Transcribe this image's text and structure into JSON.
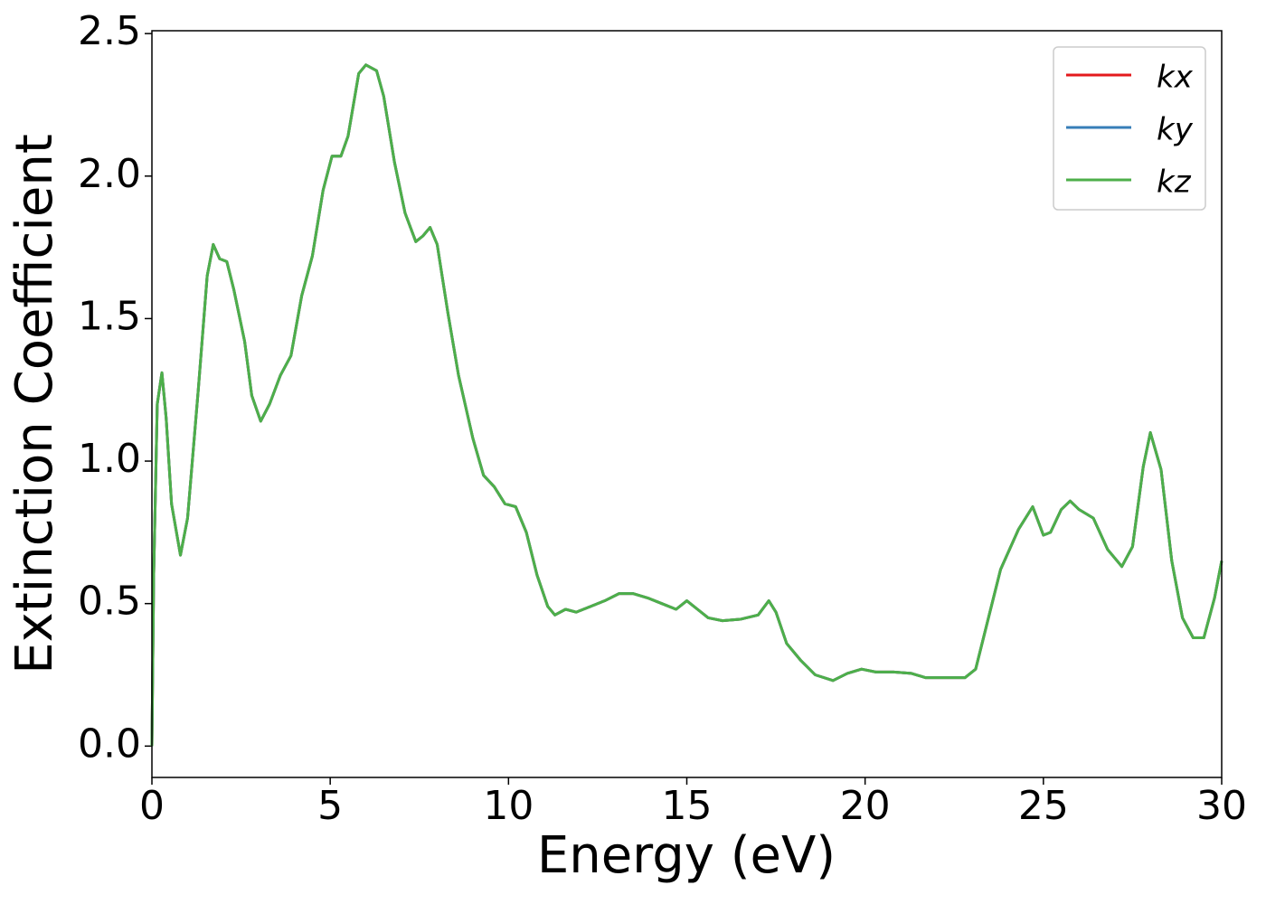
{
  "chart_data": {
    "type": "line",
    "xlabel": "Energy (eV)",
    "ylabel": "Extinction Coefficient",
    "xlim": [
      0,
      30
    ],
    "ylim": [
      -0.11,
      2.51
    ],
    "xticks": [
      0,
      5,
      10,
      15,
      20,
      25,
      30
    ],
    "yticks": [
      {
        "value": 0,
        "label": "0.0"
      },
      0.5,
      {
        "value": 1,
        "label": "1.0"
      },
      1.5,
      {
        "value": 2,
        "label": "2.0"
      },
      2.5
    ],
    "legend": "upper right",
    "x": [
      0,
      0.05,
      0.15,
      0.28,
      0.4,
      0.55,
      0.8,
      1.0,
      1.3,
      1.55,
      1.72,
      1.9,
      2.1,
      2.3,
      2.6,
      2.8,
      3.05,
      3.3,
      3.6,
      3.9,
      4.2,
      4.5,
      4.8,
      5.05,
      5.3,
      5.5,
      5.8,
      6.0,
      6.3,
      6.5,
      6.8,
      7.1,
      7.4,
      7.6,
      7.8,
      8.0,
      8.3,
      8.6,
      9.0,
      9.3,
      9.6,
      9.9,
      10.2,
      10.5,
      10.8,
      11.1,
      11.3,
      11.6,
      11.9,
      12.3,
      12.7,
      13.1,
      13.5,
      13.9,
      14.3,
      14.7,
      15.0,
      15.3,
      15.6,
      16.0,
      16.5,
      17.0,
      17.3,
      17.5,
      17.8,
      18.2,
      18.6,
      19.1,
      19.5,
      19.9,
      20.3,
      20.8,
      21.3,
      21.7,
      22.2,
      22.8,
      23.1,
      23.4,
      23.8,
      24.3,
      24.7,
      25.0,
      25.2,
      25.5,
      25.75,
      26.0,
      26.4,
      26.8,
      27.2,
      27.5,
      27.8,
      28.0,
      28.3,
      28.6,
      28.9,
      29.2,
      29.5,
      29.8,
      30.0
    ],
    "series": [
      {
        "name": "kx",
        "color": "#e41a1c",
        "values": [
          0.0,
          0.6,
          1.2,
          1.31,
          1.15,
          0.85,
          0.67,
          0.8,
          1.25,
          1.65,
          1.76,
          1.71,
          1.7,
          1.6,
          1.42,
          1.23,
          1.14,
          1.2,
          1.3,
          1.37,
          1.58,
          1.72,
          1.95,
          2.07,
          2.07,
          2.14,
          2.36,
          2.39,
          2.37,
          2.28,
          2.05,
          1.87,
          1.77,
          1.79,
          1.82,
          1.76,
          1.52,
          1.3,
          1.08,
          0.95,
          0.91,
          0.85,
          0.84,
          0.75,
          0.6,
          0.49,
          0.46,
          0.48,
          0.47,
          0.49,
          0.51,
          0.535,
          0.535,
          0.52,
          0.5,
          0.48,
          0.51,
          0.48,
          0.45,
          0.44,
          0.445,
          0.46,
          0.51,
          0.47,
          0.36,
          0.3,
          0.25,
          0.23,
          0.255,
          0.27,
          0.26,
          0.26,
          0.255,
          0.24,
          0.24,
          0.24,
          0.27,
          0.42,
          0.62,
          0.76,
          0.84,
          0.74,
          0.75,
          0.83,
          0.86,
          0.83,
          0.8,
          0.69,
          0.63,
          0.7,
          0.98,
          1.1,
          0.97,
          0.65,
          0.45,
          0.38,
          0.38,
          0.52,
          0.65
        ]
      },
      {
        "name": "ky",
        "color": "#377eb8",
        "values": [
          0.0,
          0.6,
          1.2,
          1.31,
          1.15,
          0.85,
          0.67,
          0.8,
          1.25,
          1.65,
          1.76,
          1.71,
          1.7,
          1.6,
          1.42,
          1.23,
          1.14,
          1.2,
          1.3,
          1.37,
          1.58,
          1.72,
          1.95,
          2.07,
          2.07,
          2.14,
          2.36,
          2.39,
          2.37,
          2.28,
          2.05,
          1.87,
          1.77,
          1.79,
          1.82,
          1.76,
          1.52,
          1.3,
          1.08,
          0.95,
          0.91,
          0.85,
          0.84,
          0.75,
          0.6,
          0.49,
          0.46,
          0.48,
          0.47,
          0.49,
          0.51,
          0.535,
          0.535,
          0.52,
          0.5,
          0.48,
          0.51,
          0.48,
          0.45,
          0.44,
          0.445,
          0.46,
          0.51,
          0.47,
          0.36,
          0.3,
          0.25,
          0.23,
          0.255,
          0.27,
          0.26,
          0.26,
          0.255,
          0.24,
          0.24,
          0.24,
          0.27,
          0.42,
          0.62,
          0.76,
          0.84,
          0.74,
          0.75,
          0.83,
          0.86,
          0.83,
          0.8,
          0.69,
          0.63,
          0.7,
          0.98,
          1.1,
          0.97,
          0.65,
          0.45,
          0.38,
          0.38,
          0.52,
          0.65
        ]
      },
      {
        "name": "kz",
        "color": "#4daf4a",
        "values": [
          0.0,
          0.6,
          1.2,
          1.31,
          1.15,
          0.85,
          0.67,
          0.8,
          1.25,
          1.65,
          1.76,
          1.71,
          1.7,
          1.6,
          1.42,
          1.23,
          1.14,
          1.2,
          1.3,
          1.37,
          1.58,
          1.72,
          1.95,
          2.07,
          2.07,
          2.14,
          2.36,
          2.39,
          2.37,
          2.28,
          2.05,
          1.87,
          1.77,
          1.79,
          1.82,
          1.76,
          1.52,
          1.3,
          1.08,
          0.95,
          0.91,
          0.85,
          0.84,
          0.75,
          0.6,
          0.49,
          0.46,
          0.48,
          0.47,
          0.49,
          0.51,
          0.535,
          0.535,
          0.52,
          0.5,
          0.48,
          0.51,
          0.48,
          0.45,
          0.44,
          0.445,
          0.46,
          0.51,
          0.47,
          0.36,
          0.3,
          0.25,
          0.23,
          0.255,
          0.27,
          0.26,
          0.26,
          0.255,
          0.24,
          0.24,
          0.24,
          0.27,
          0.42,
          0.62,
          0.76,
          0.84,
          0.74,
          0.75,
          0.83,
          0.86,
          0.83,
          0.8,
          0.69,
          0.63,
          0.7,
          0.98,
          1.1,
          0.97,
          0.65,
          0.45,
          0.38,
          0.38,
          0.52,
          0.65
        ]
      }
    ]
  }
}
